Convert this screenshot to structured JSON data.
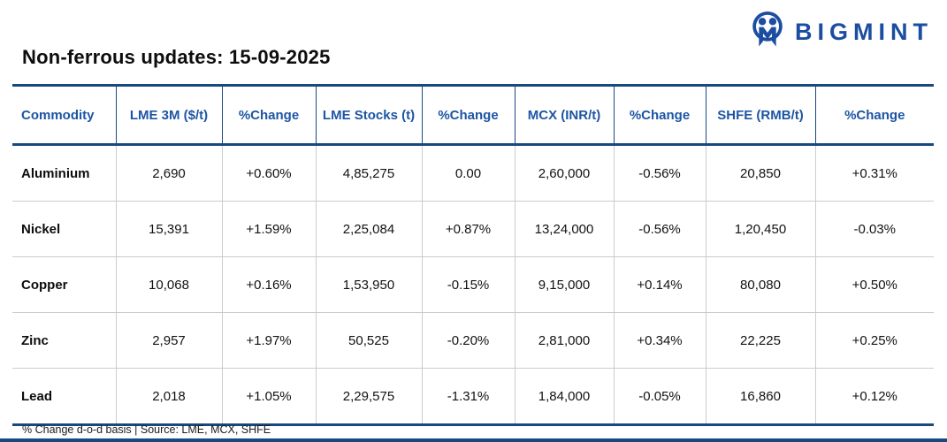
{
  "header": {
    "title": "Non-ferrous updates: 15-09-2025",
    "logo_text": "BIGMINT"
  },
  "table": {
    "columns": [
      "Commodity",
      "LME 3M ($/t)",
      "%Change",
      "LME Stocks (t)",
      "%Change",
      "MCX (INR/t)",
      "%Change",
      "SHFE (RMB/t)",
      "%Change"
    ],
    "rows": [
      {
        "cells": [
          "Aluminium",
          "2,690",
          "+0.60%",
          "4,85,275",
          "0.00",
          "2,60,000",
          "-0.56%",
          "20,850",
          "+0.31%"
        ]
      },
      {
        "cells": [
          "Nickel",
          "15,391",
          "+1.59%",
          "2,25,084",
          "+0.87%",
          "13,24,000",
          "-0.56%",
          "1,20,450",
          "-0.03%"
        ]
      },
      {
        "cells": [
          "Copper",
          "10,068",
          "+0.16%",
          "1,53,950",
          "-0.15%",
          "9,15,000",
          "+0.14%",
          "80,080",
          "+0.50%"
        ]
      },
      {
        "cells": [
          "Zinc",
          "2,957",
          "+1.97%",
          "50,525",
          "-0.20%",
          "2,81,000",
          "+0.34%",
          "22,225",
          "+0.25%"
        ]
      },
      {
        "cells": [
          "Lead",
          "2,018",
          "+1.05%",
          "2,29,575",
          "-1.31%",
          "1,84,000",
          "-0.05%",
          "16,860",
          "+0.12%"
        ]
      }
    ]
  },
  "footer": {
    "note": "% Change d-o-d basis | Source: LME, MCX, SHFE"
  },
  "colors": {
    "accent_navy": "#17497f",
    "header_blue": "#1d55a4",
    "logo_navy": "#1b4da0",
    "positive_green": "#0fbd74",
    "negative_red": "#ee2129",
    "grid_gray": "#cccccc"
  },
  "chart_data": {
    "type": "table",
    "title": "Non-ferrous updates: 15-09-2025",
    "columns": [
      "Commodity",
      "LME 3M ($/t)",
      "%Change",
      "LME Stocks (t)",
      "%Change",
      "MCX (INR/t)",
      "%Change",
      "SHFE (RMB/t)",
      "%Change"
    ],
    "rows": [
      [
        "Aluminium",
        2690,
        "+0.60%",
        485275,
        "0.00",
        260000,
        "-0.56%",
        20850,
        "+0.31%"
      ],
      [
        "Nickel",
        15391,
        "+1.59%",
        225084,
        "+0.87%",
        1324000,
        "-0.56%",
        120450,
        "-0.03%"
      ],
      [
        "Copper",
        10068,
        "+0.16%",
        153950,
        "-0.15%",
        915000,
        "+0.14%",
        80080,
        "+0.50%"
      ],
      [
        "Zinc",
        2957,
        "+1.97%",
        50525,
        "-0.20%",
        281000,
        "+0.34%",
        22225,
        "+0.25%"
      ],
      [
        "Lead",
        2018,
        "+1.05%",
        229575,
        "-1.31%",
        184000,
        "-0.05%",
        16860,
        "+0.12%"
      ]
    ],
    "note": "% Change d-o-d basis | Source: LME, MCX, SHFE"
  }
}
